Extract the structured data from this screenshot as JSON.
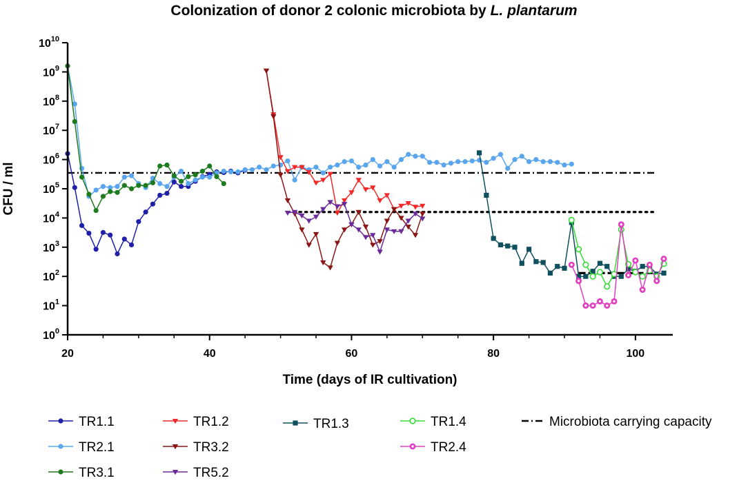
{
  "chart_data": {
    "type": "line",
    "title": "Colonization of donor 2 colonic microbiota by ",
    "title_italic": "L. plantarum",
    "xlabel": "Time (days of IR cultivation)",
    "ylabel": "CFU / ml",
    "xlim": [
      20,
      104
    ],
    "x_ticks": [
      "20",
      "40",
      "60",
      "80",
      "100"
    ],
    "y_scale": "log10",
    "ylim_exp": [
      0,
      10
    ],
    "y_ticks": [
      {
        "base": "10",
        "exp": "0"
      },
      {
        "base": "10",
        "exp": "1"
      },
      {
        "base": "10",
        "exp": "2"
      },
      {
        "base": "10",
        "exp": "3"
      },
      {
        "base": "10",
        "exp": "4"
      },
      {
        "base": "10",
        "exp": "5"
      },
      {
        "base": "10",
        "exp": "6"
      },
      {
        "base": "10",
        "exp": "7"
      },
      {
        "base": "10",
        "exp": "8"
      },
      {
        "base": "10",
        "exp": "9"
      },
      {
        "base": "10",
        "exp": "10"
      }
    ],
    "series": [
      {
        "name": "TR1.1",
        "color": "#1f1fa8",
        "marker": "circle",
        "x": [
          20,
          21,
          22,
          23,
          24,
          25,
          26,
          27,
          28,
          29,
          30,
          31,
          32,
          33,
          34,
          35,
          36,
          37,
          38,
          39,
          40,
          41,
          42,
          43,
          44,
          45
        ],
        "y": [
          1600000.0,
          110000.0,
          5500.0,
          3000.0,
          850.0,
          3200.0,
          2600.0,
          590.0,
          1900.0,
          1200.0,
          7500.0,
          16000.0,
          30000.0,
          60000.0,
          70000.0,
          170000.0,
          120000.0,
          120000.0,
          180000.0,
          260000.0,
          310000.0,
          380000.0,
          360000.0,
          400000.0,
          350000.0,
          430000.0
        ]
      },
      {
        "name": "TR2.1",
        "color": "#5aa6ee",
        "marker": "circle",
        "x": [
          20,
          21,
          22,
          23,
          24,
          25,
          26,
          27,
          28,
          29,
          30,
          31,
          32,
          33,
          34,
          35,
          36,
          37,
          38,
          39,
          40,
          41,
          42,
          43,
          44,
          45,
          46,
          47,
          48,
          49,
          50,
          51,
          52,
          53,
          54,
          55,
          56,
          57,
          58,
          59,
          60,
          61,
          62,
          63,
          64,
          65,
          66,
          67,
          68,
          69,
          70,
          71,
          72,
          73,
          74,
          75,
          76,
          77,
          78,
          79,
          80,
          81,
          82,
          83,
          84,
          85,
          86,
          87,
          88,
          89,
          90,
          91
        ],
        "y": [
          1600000000.0,
          80000000.0,
          500000.0,
          55000.0,
          90000.0,
          120000.0,
          110000.0,
          120000.0,
          250000.0,
          280000.0,
          150000.0,
          110000.0,
          230000.0,
          150000.0,
          120000.0,
          250000.0,
          400000.0,
          150000.0,
          200000.0,
          250000.0,
          250000.0,
          350000.0,
          400000.0,
          380000.0,
          380000.0,
          450000.0,
          450000.0,
          550000.0,
          450000.0,
          600000.0,
          650000.0,
          900000.0,
          200000.0,
          550000.0,
          450000.0,
          550000.0,
          350000.0,
          550000.0,
          650000.0,
          850000.0,
          900000.0,
          550000.0,
          650000.0,
          1000000.0,
          600000.0,
          850000.0,
          550000.0,
          1000000.0,
          1500000.0,
          1300000.0,
          1300000.0,
          800000.0,
          800000.0,
          650000.0,
          750000.0,
          850000.0,
          850000.0,
          900000.0,
          950000.0,
          800000.0,
          1100000.0,
          1500000.0,
          500000.0,
          1000000.0,
          1300000.0,
          850000.0,
          1000000.0,
          850000.0,
          850000.0,
          800000.0,
          650000.0,
          700000.0
        ]
      },
      {
        "name": "TR3.1",
        "color": "#1d7a1d",
        "marker": "circle",
        "x": [
          20,
          21,
          22,
          23,
          24,
          25,
          26,
          27,
          28,
          29,
          30,
          31,
          32,
          33,
          34,
          35,
          36,
          37,
          38,
          39,
          40,
          41,
          42
        ],
        "y": [
          1600000000.0,
          20000000.0,
          250000.0,
          65000.0,
          18000.0,
          55000.0,
          80000.0,
          75000.0,
          130000.0,
          100000.0,
          130000.0,
          130000.0,
          160000.0,
          600000.0,
          650000.0,
          280000.0,
          180000.0,
          260000.0,
          300000.0,
          400000.0,
          600000.0,
          260000.0,
          150000.0
        ]
      },
      {
        "name": "TR1.2",
        "color": "#f02a2a",
        "marker": "tri-down",
        "x": [
          48,
          49,
          50,
          51,
          52,
          53,
          54,
          55,
          56,
          57,
          58,
          59,
          60,
          61,
          62,
          63,
          64,
          65,
          66,
          67,
          68,
          69,
          70
        ],
        "y": [
          1100000000.0,
          35000000.0,
          1200000.0,
          400000.0,
          550000.0,
          550000.0,
          370000.0,
          160000.0,
          200000.0,
          320000.0,
          15000.0,
          40000.0,
          75000.0,
          200000.0,
          95000.0,
          110000.0,
          40000.0,
          60000.0,
          20000.0,
          26000.0,
          32000.0,
          24000.0,
          26000.0
        ]
      },
      {
        "name": "TR3.2",
        "color": "#8b1515",
        "marker": "tri-down",
        "x": [
          48,
          49,
          50,
          51,
          52,
          53,
          54,
          55,
          56,
          57,
          58,
          59,
          60,
          61,
          62,
          63,
          64,
          65,
          66,
          67,
          68,
          69,
          70
        ],
        "y": [
          1100000000.0,
          30000000.0,
          300000.0,
          40000.0,
          14000.0,
          4000.0,
          1200.0,
          2800.0,
          300.0,
          200.0,
          1400.0,
          4000.0,
          6000.0,
          16000.0,
          5000.0,
          1200.0,
          1600.0,
          8000.0,
          20000.0,
          10000.0,
          5000.0,
          2600.0,
          14000.0
        ]
      },
      {
        "name": "TR5.2",
        "color": "#6a2a9a",
        "marker": "tri-down",
        "x": [
          51,
          52,
          53,
          54,
          55,
          56,
          57,
          58,
          59,
          60,
          61,
          62,
          63,
          64,
          65,
          66,
          67,
          68,
          69,
          70
        ],
        "y": [
          15000.0,
          16000.0,
          12000.0,
          8000.0,
          11000.0,
          20000.0,
          35000.0,
          25000.0,
          30000.0,
          6000.0,
          4000.0,
          2200.0,
          2600.0,
          700.0,
          4000.0,
          3500.0,
          3500.0,
          8000.0,
          14000.0,
          9500.0
        ]
      },
      {
        "name": "TR1.3",
        "color": "#0f4f5e",
        "marker": "square",
        "x": [
          78,
          79,
          80,
          81,
          82,
          83,
          84,
          85,
          86,
          87,
          88,
          89,
          90,
          91,
          92,
          93,
          94,
          95,
          96,
          97,
          98,
          99,
          100,
          101,
          102,
          103,
          104
        ],
        "y": [
          1700000.0,
          60000.0,
          2000.0,
          1200.0,
          1100.0,
          1000.0,
          280.0,
          850.0,
          320.0,
          300.0,
          130.0,
          220.0,
          190.0,
          7000.0,
          100.0,
          100.0,
          150.0,
          280.0,
          220.0,
          100.0,
          100.0,
          180.0,
          150.0,
          220.0,
          220.0,
          120.0,
          130.0
        ]
      },
      {
        "name": "TR1.4",
        "color": "#33dd33",
        "marker": "circle-open",
        "x": [
          91,
          92,
          93,
          94,
          95,
          96,
          97,
          98,
          99,
          100,
          101,
          102,
          103,
          104
        ],
        "y": [
          8500.0,
          850.0,
          250.0,
          100.0,
          140.0,
          45.0,
          120.0,
          4000.0,
          260.0,
          140.0,
          100.0,
          160.0,
          100.0,
          270.0
        ]
      },
      {
        "name": "TR2.4",
        "color": "#e040c0",
        "marker": "circle-dot",
        "x": [
          91,
          92,
          93,
          94,
          95,
          96,
          97,
          98,
          99,
          100,
          101,
          102,
          103,
          104
        ],
        "y": [
          250.0,
          70.0,
          10.0,
          10.0,
          14.0,
          10.0,
          14.0,
          6000.0,
          110.0,
          350.0,
          35.0,
          250.0,
          70.0,
          400.0
        ]
      }
    ],
    "reference_lines": [
      {
        "name": "Microbiota carrying capacity",
        "style": "dash-dot",
        "y": 350000.0,
        "x": [
          20,
          103
        ]
      },
      {
        "name": "",
        "style": "dotted",
        "y": 16000.0,
        "x": [
          51,
          103
        ]
      },
      {
        "name": "",
        "style": "dashed",
        "y": 130.0,
        "x": [
          92,
          103
        ]
      }
    ],
    "legend": {
      "placement": "bottom",
      "columns": [
        [
          "TR1.1",
          "TR2.1",
          "TR3.1"
        ],
        [
          "TR1.2",
          "TR3.2",
          "TR5.2"
        ],
        [
          "TR1.3"
        ],
        [
          "TR1.4",
          "TR2.4"
        ],
        [
          "Microbiota carrying capacity"
        ]
      ]
    }
  }
}
